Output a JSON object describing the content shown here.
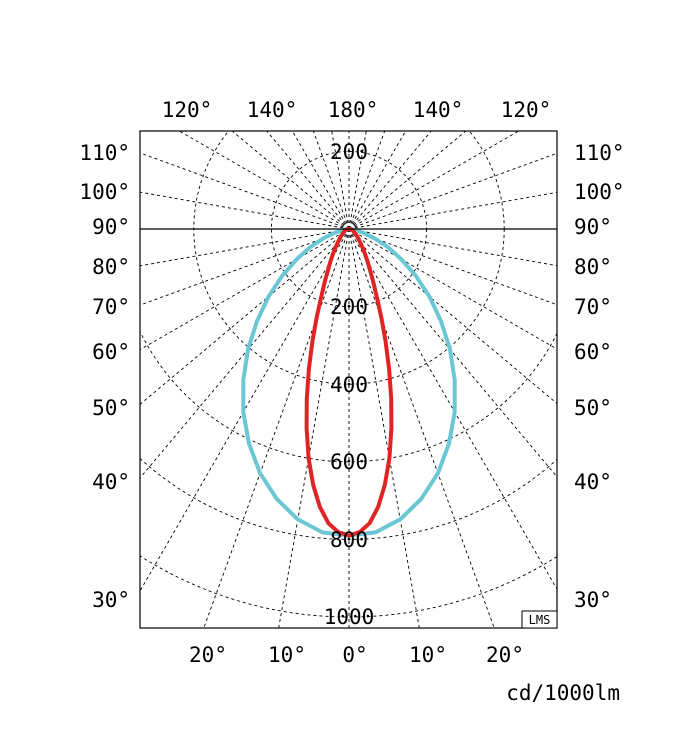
{
  "chart_data": {
    "type": "polar-luminous-intensity",
    "unit_label": "cd/1000lm",
    "badge": "LMS",
    "radial_labels": [
      "200",
      "200",
      "400",
      "600",
      "800",
      "1000"
    ],
    "radial_values": [
      200,
      200,
      400,
      600,
      800,
      1000
    ],
    "top_angle_labels": [
      "120°",
      "140°",
      "180°",
      "140°",
      "120°"
    ],
    "left_angle_labels": [
      "110°",
      "100°",
      "90°",
      "80°",
      "70°",
      "60°",
      "50°",
      "40°",
      "30°"
    ],
    "right_angle_labels": [
      "110°",
      "100°",
      "90°",
      "80°",
      "70°",
      "60°",
      "50°",
      "40°",
      "30°"
    ],
    "bottom_angle_labels": [
      "20°",
      "10°",
      "0°",
      "10°",
      "20°"
    ],
    "angle_step_deg": 10,
    "max_intensity": 1000,
    "series": [
      {
        "color": "#6cc7d4",
        "points": [
          [
            0,
            790
          ],
          [
            5,
            785
          ],
          [
            10,
            760
          ],
          [
            15,
            720
          ],
          [
            20,
            670
          ],
          [
            25,
            610
          ],
          [
            30,
            545
          ],
          [
            35,
            475
          ],
          [
            40,
            405
          ],
          [
            45,
            335
          ],
          [
            50,
            270
          ],
          [
            55,
            210
          ],
          [
            60,
            155
          ],
          [
            65,
            110
          ],
          [
            70,
            70
          ],
          [
            75,
            38
          ],
          [
            80,
            15
          ],
          [
            85,
            4
          ],
          [
            90,
            0
          ]
        ]
      },
      {
        "color": "#e02424",
        "points": [
          [
            0,
            790
          ],
          [
            2,
            782
          ],
          [
            4,
            760
          ],
          [
            6,
            720
          ],
          [
            8,
            665
          ],
          [
            10,
            600
          ],
          [
            12,
            525
          ],
          [
            14,
            450
          ],
          [
            16,
            375
          ],
          [
            18,
            305
          ],
          [
            20,
            245
          ],
          [
            22,
            195
          ],
          [
            25,
            145
          ],
          [
            30,
            95
          ],
          [
            35,
            65
          ],
          [
            40,
            45
          ],
          [
            50,
            25
          ],
          [
            60,
            15
          ],
          [
            70,
            10
          ],
          [
            80,
            6
          ],
          [
            88,
            0
          ]
        ]
      }
    ]
  }
}
